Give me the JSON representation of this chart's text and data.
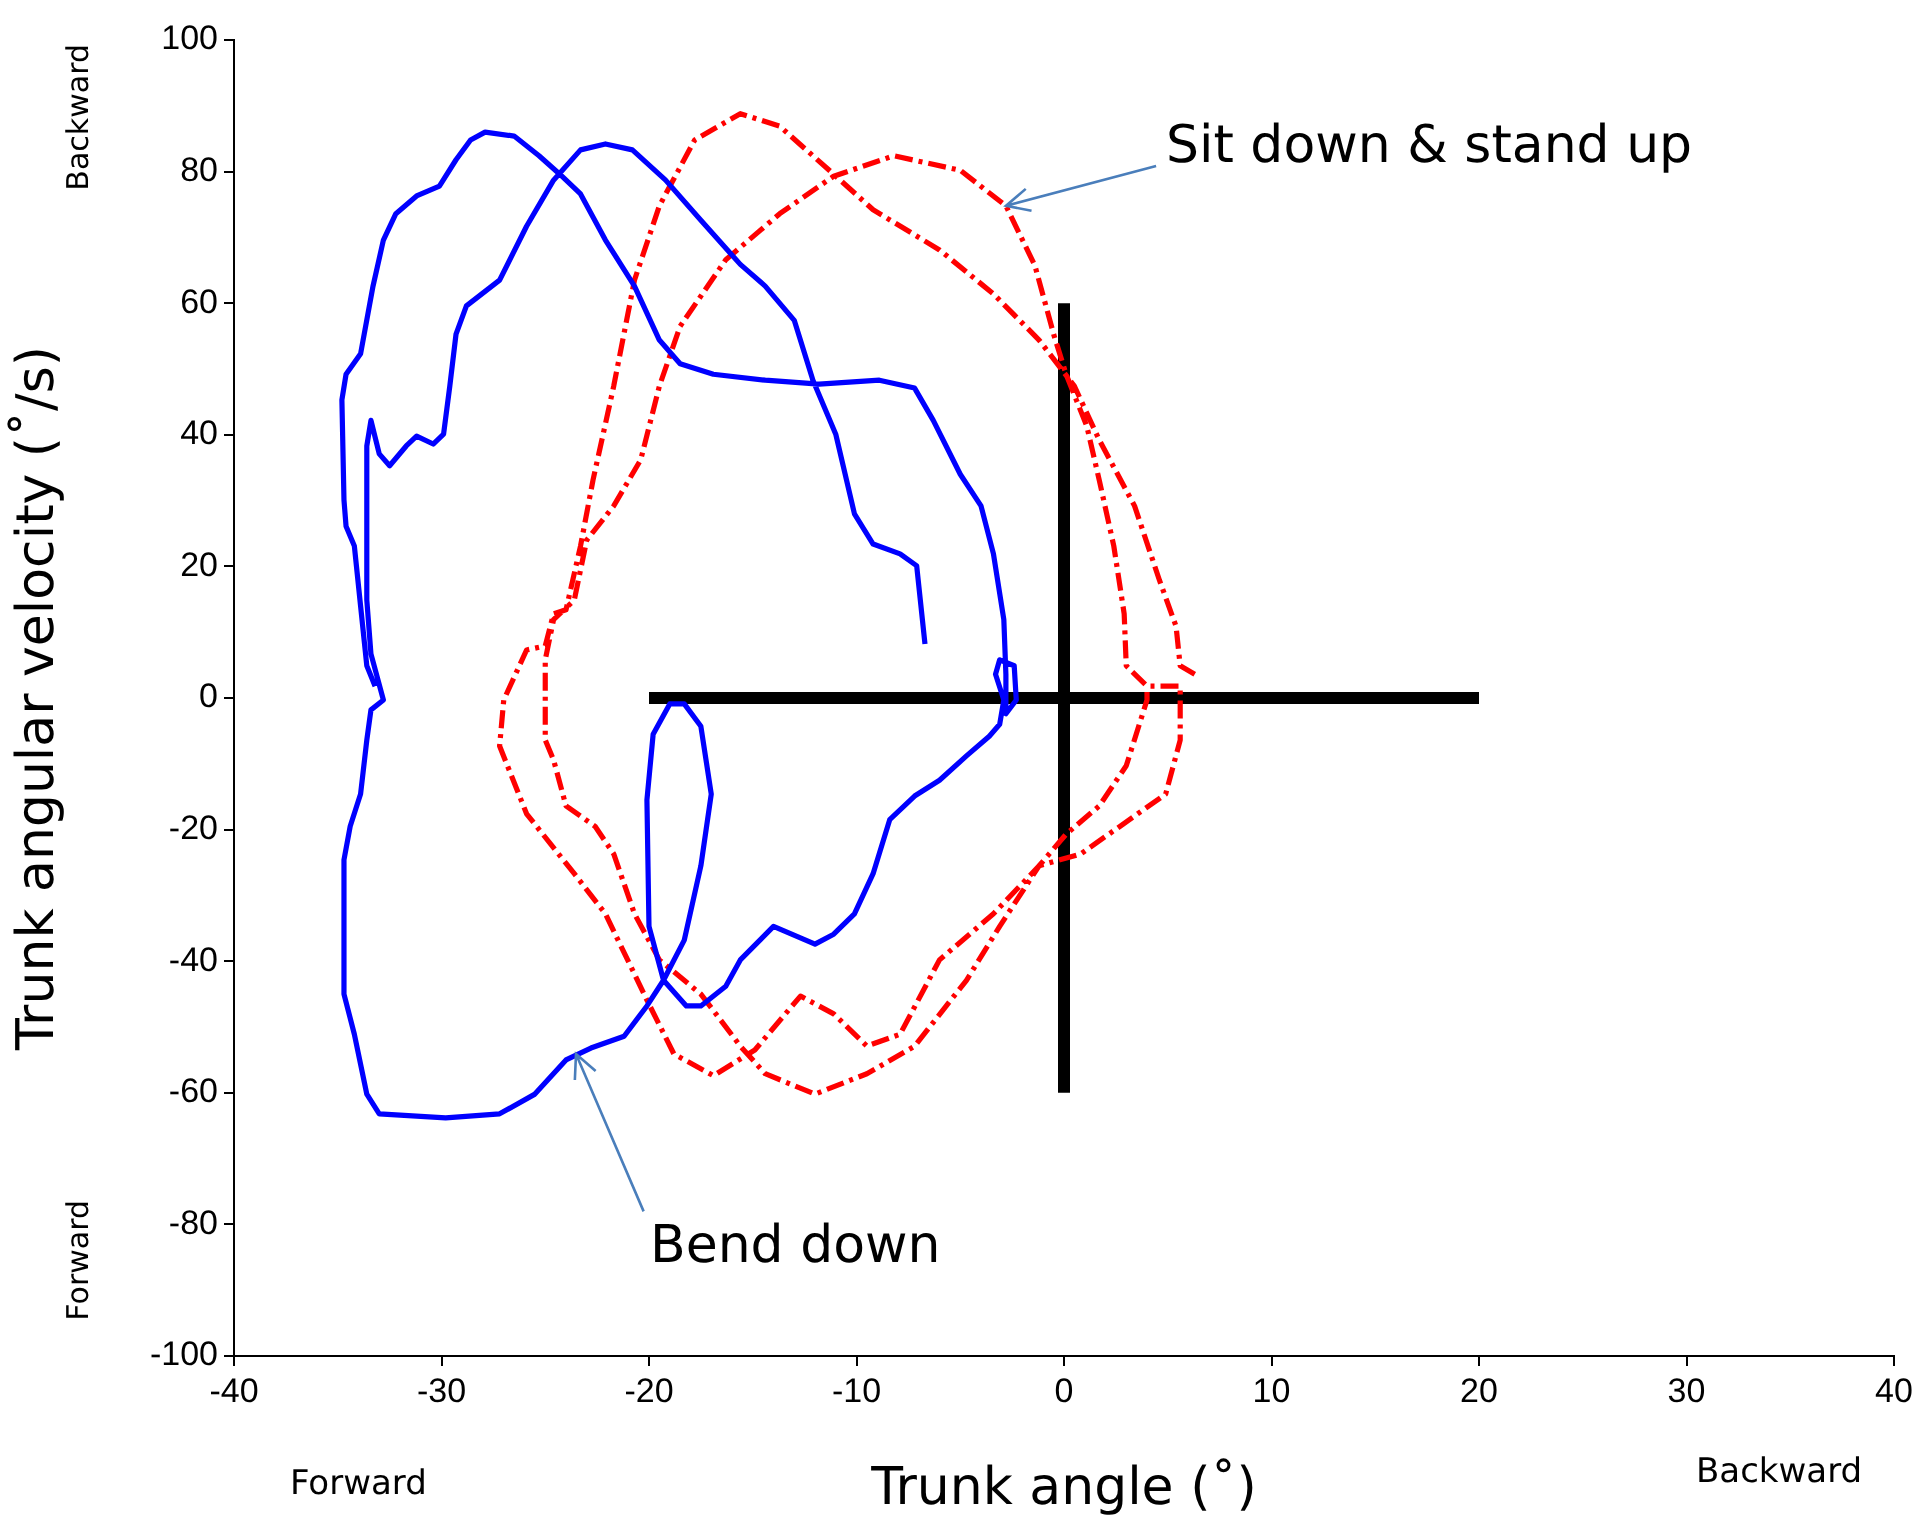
{
  "chart_data": {
    "type": "line",
    "xlabel": "Trunk angle (˚)",
    "ylabel": "Trunk angular velocity (˚/s)",
    "xlim": [
      -40,
      40
    ],
    "xticks": [
      -40,
      -30,
      -20,
      -10,
      0,
      10,
      20,
      30,
      40
    ],
    "ylim": [
      -100,
      100
    ],
    "yticks": [
      -100,
      -80,
      -60,
      -40,
      -20,
      0,
      20,
      40,
      60,
      80,
      100
    ],
    "grid": false,
    "legend": false,
    "marker": "none",
    "annotations": [
      {
        "text": "Sit down & stand up",
        "x": -2.8,
        "y": 74.8
      },
      {
        "text": "Bend down",
        "x": -23.5,
        "y": -54.2
      },
      "Backward",
      "Forward",
      "Forward",
      "Backward"
    ],
    "series": [
      {
        "color": "#0000ff",
        "line_style": "solid",
        "x": [
          -6.7,
          -7.1,
          -7.9,
          -9.2,
          -10.1,
          -11.0,
          -12.1,
          -13.0,
          -14.4,
          -15.6,
          -17.5,
          -19.2,
          -20.8,
          -22.1,
          -23.3,
          -24.6,
          -25.9,
          -27.2,
          -28.8,
          -29.3,
          -29.6,
          -29.9,
          -30.4,
          -31.2,
          -31.7,
          -32.5,
          -33.0,
          -33.4,
          -33.6,
          -33.6,
          -33.4,
          -32.8,
          -33.4,
          -33.6,
          -33.9,
          -34.4,
          -34.7,
          -34.7,
          -34.2,
          -33.6,
          -33.0,
          -29.8,
          -27.2,
          -25.5,
          -24.0,
          -22.8,
          -21.2,
          -20.1,
          -19.3,
          -18.3,
          -17.5,
          -17.0,
          -17.5,
          -18.3,
          -19.0,
          -19.8,
          -20.1,
          -20.0,
          -19.3,
          -18.2,
          -17.5,
          -16.3,
          -15.6,
          -14.0,
          -12.0,
          -11.1,
          -10.1,
          -9.2,
          -8.4,
          -7.2,
          -6.0,
          -4.7,
          -3.6,
          -3.1,
          -2.9,
          -3.3,
          -3.1,
          -2.4,
          -2.3,
          -2.8,
          -2.8,
          -2.9,
          -3.4,
          -4.0,
          -5.0,
          -6.3,
          -7.2,
          -8.9,
          -11.8,
          -14.4,
          -16.9,
          -18.5,
          -19.5,
          -20.7,
          -22.1,
          -23.3,
          -24.3,
          -25.3,
          -26.5,
          -27.9,
          -28.6,
          -29.3,
          -30.1,
          -31.2,
          -32.2,
          -32.8,
          -33.3,
          -33.9,
          -34.6,
          -34.8,
          -34.7,
          -34.6,
          -34.2,
          -33.9,
          -33.6,
          -33.2
        ],
        "values": [
          8.2,
          20.1,
          21.9,
          23.4,
          28.0,
          40.1,
          48.3,
          57.4,
          62.6,
          65.9,
          72.6,
          78.7,
          83.3,
          84.2,
          83.3,
          78.7,
          71.7,
          63.5,
          59.6,
          55.3,
          47.4,
          40.1,
          38.6,
          39.8,
          38.3,
          35.3,
          37.1,
          42.2,
          38.3,
          14.9,
          6.7,
          -0.3,
          -1.8,
          -6.4,
          -14.6,
          -19.5,
          -24.6,
          -45.0,
          -51.1,
          -60.2,
          -63.2,
          -63.8,
          -63.2,
          -60.2,
          -55.0,
          -53.2,
          -51.4,
          -46.8,
          -42.9,
          -36.8,
          -25.5,
          -14.6,
          -4.3,
          -0.9,
          -0.9,
          -5.5,
          -15.5,
          -34.7,
          -42.9,
          -46.8,
          -46.8,
          -43.8,
          -39.8,
          -34.7,
          -37.4,
          -35.9,
          -32.8,
          -26.7,
          -18.5,
          -14.9,
          -12.5,
          -8.8,
          -5.8,
          -4.0,
          -0.3,
          3.6,
          5.8,
          4.9,
          -0.3,
          -2.4,
          3.6,
          11.9,
          21.9,
          29.2,
          34.0,
          42.2,
          47.1,
          48.3,
          47.7,
          48.3,
          49.2,
          50.8,
          54.4,
          62.6,
          69.6,
          76.6,
          79.6,
          82.4,
          85.4,
          86.0,
          84.8,
          81.8,
          77.8,
          76.3,
          73.6,
          69.6,
          62.6,
          52.3,
          49.2,
          45.3,
          30.1,
          26.1,
          23.1,
          14.0,
          4.9,
          1.8
        ]
      },
      {
        "color": "#ff0000",
        "line_style": "dashed",
        "x": [
          6.3,
          5.6,
          5.4,
          4.6,
          3.4,
          1.7,
          0.5,
          -1.2,
          -3.4,
          -6.0,
          -9.2,
          -11.1,
          -13.7,
          -15.6,
          -17.8,
          -19.5,
          -20.7,
          -21.7,
          -22.7,
          -23.3,
          -24.0,
          -24.6,
          -25.0,
          -25.9,
          -27.0,
          -27.2,
          -25.9,
          -23.6,
          -22.1,
          -20.1,
          -18.8,
          -16.9,
          -14.9,
          -12.7,
          -11.1,
          -9.5,
          -7.9,
          -6.0,
          -3.4,
          -1.2,
          0.8,
          2.7,
          4.9,
          5.6,
          5.6,
          4.0,
          3.0,
          2.9,
          2.4,
          1.7,
          1.1,
          0.1,
          -0.5,
          -1.4,
          -2.8,
          -5.0,
          -8.2,
          -11.1,
          -13.7,
          -16.3,
          -18.5,
          -19.5,
          -20.4,
          -21.7,
          -23.0,
          -23.6,
          -24.6,
          -25.0,
          -25.0,
          -24.6,
          -24.0,
          -22.6,
          -21.7,
          -20.7,
          -19.5,
          -17.5,
          -15.6,
          -14.4,
          -12.0,
          -9.5,
          -7.2,
          -4.7,
          -3.1,
          -1.2,
          0.1,
          1.7,
          3.0,
          4.0,
          4.0
        ],
        "values": [
          3.6,
          4.9,
          10.9,
          17.9,
          29.2,
          39.2,
          47.4,
          54.4,
          61.4,
          68.1,
          74.2,
          79.6,
          86.9,
          88.8,
          84.8,
          74.8,
          63.5,
          47.4,
          33.1,
          23.1,
          13.4,
          12.8,
          7.9,
          7.3,
          -0.3,
          -7.3,
          -17.6,
          -26.7,
          -32.8,
          -45.9,
          -54.1,
          -57.4,
          -53.5,
          -45.3,
          -48.0,
          -52.9,
          -51.1,
          -39.8,
          -32.8,
          -25.5,
          -23.7,
          -19.5,
          -14.6,
          -6.4,
          1.8,
          1.8,
          4.9,
          12.8,
          23.1,
          33.1,
          41.3,
          49.2,
          55.3,
          65.7,
          74.8,
          80.2,
          82.4,
          79.3,
          73.6,
          66.6,
          56.5,
          47.4,
          36.2,
          29.2,
          24.0,
          14.9,
          11.9,
          5.8,
          -6.4,
          -9.4,
          -16.4,
          -19.5,
          -23.7,
          -32.8,
          -39.8,
          -45.0,
          -52.9,
          -57.1,
          -60.2,
          -57.1,
          -52.9,
          -42.9,
          -34.7,
          -25.5,
          -20.7,
          -16.4,
          -10.3,
          -0.3,
          1.8
        ]
      },
      {
        "color": "#000000",
        "line_style": "solid",
        "x": [
          -20,
          20
        ],
        "values": [
          0,
          0
        ]
      },
      {
        "color": "#000000",
        "line_style": "solid",
        "x": [
          0,
          0
        ],
        "values": [
          -60,
          60
        ]
      }
    ]
  }
}
